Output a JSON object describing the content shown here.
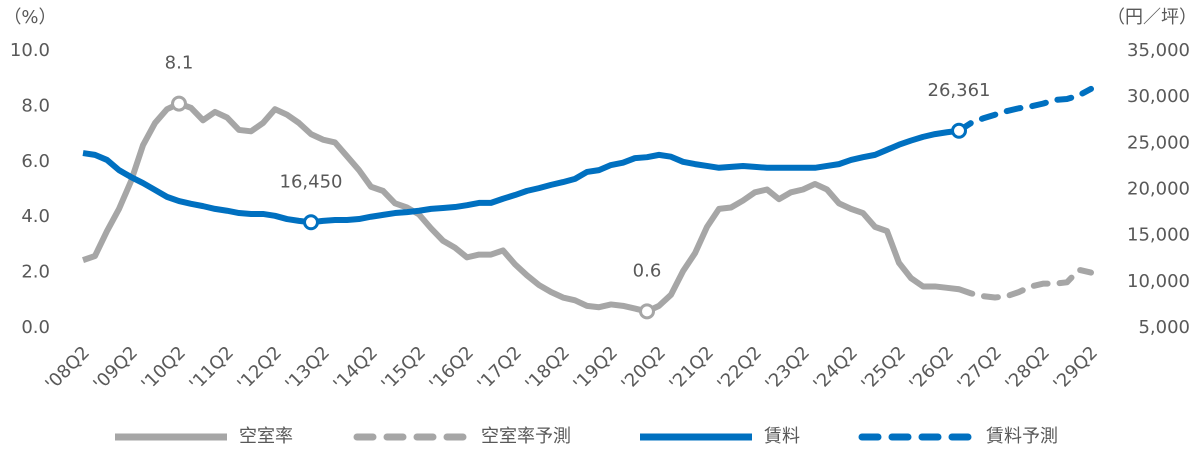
{
  "chart_data": {
    "type": "line",
    "y_label": "（%）",
    "y2_label": "（円／坪）",
    "categories": [
      "'08Q2",
      null,
      null,
      null,
      "'09Q2",
      null,
      null,
      null,
      "'10Q2",
      null,
      null,
      null,
      "'11Q2",
      null,
      null,
      null,
      "'12Q2",
      null,
      null,
      null,
      "'13Q2",
      null,
      null,
      null,
      "'14Q2",
      null,
      null,
      null,
      "'15Q2",
      null,
      null,
      null,
      "'16Q2",
      null,
      null,
      null,
      "'17Q2",
      null,
      null,
      null,
      "'18Q2",
      null,
      null,
      null,
      "'19Q2",
      null,
      null,
      null,
      "'20Q2",
      null,
      null,
      null,
      "'21Q2",
      null,
      null,
      null,
      "'22Q2",
      null,
      null,
      null,
      "'23Q2",
      null,
      null,
      null,
      "'24Q2",
      null,
      null,
      null,
      "'25Q2",
      null,
      null,
      null,
      "'26Q2",
      null,
      null,
      null,
      "'27Q2",
      null,
      null,
      null,
      "'28Q2",
      null,
      null,
      null,
      "'29Q2"
    ],
    "ylim": [
      0,
      10
    ],
    "yticks": [
      {
        "value": 0,
        "label": "0.0"
      },
      {
        "value": 2,
        "label": "2.0"
      },
      {
        "value": 4,
        "label": "4.0"
      },
      {
        "value": 6,
        "label": "6.0"
      },
      {
        "value": 8,
        "label": "8.0"
      },
      {
        "value": 10,
        "label": "10.0"
      }
    ],
    "y2lim": [
      5000,
      35000
    ],
    "y2ticks": [
      {
        "value": 5000,
        "label": "5,000"
      },
      {
        "value": 10000,
        "label": "10,000"
      },
      {
        "value": 15000,
        "label": "15,000"
      },
      {
        "value": 20000,
        "label": "20,000"
      },
      {
        "value": 25000,
        "label": "25,000"
      },
      {
        "value": 30000,
        "label": "30,000"
      },
      {
        "value": 35000,
        "label": "35,000"
      }
    ],
    "grid": false,
    "legend": "bottom",
    "series": [
      {
        "name": "空室率",
        "color": "#a6a6a6",
        "dashed": false,
        "values": [
          2.45,
          2.6,
          3.5,
          4.3,
          5.3,
          6.6,
          7.4,
          7.9,
          8.1,
          7.95,
          7.5,
          7.8,
          7.6,
          7.15,
          7.1,
          7.4,
          7.9,
          7.7,
          7.4,
          7.0,
          6.8,
          6.7,
          6.2,
          5.7,
          5.1,
          4.95,
          4.5,
          4.35,
          4.1,
          3.6,
          3.15,
          2.9,
          2.55,
          2.65,
          2.65,
          2.8,
          2.3,
          1.9,
          1.55,
          1.3,
          1.1,
          1.0,
          0.8,
          0.75,
          0.85,
          0.8,
          0.7,
          0.6,
          0.8,
          1.2,
          2.05,
          2.7,
          3.65,
          4.3,
          4.35,
          4.6,
          4.9,
          5.0,
          4.65,
          4.9,
          5.0,
          5.2,
          5.0,
          4.5,
          4.3,
          4.15,
          3.65,
          3.5,
          2.35,
          1.8,
          1.5,
          1.5,
          1.45,
          1.4,
          null,
          null,
          null,
          null,
          null,
          null,
          null,
          null,
          null,
          null,
          null
        ],
        "value_labels": [
          null,
          null,
          null,
          null,
          null,
          null,
          null,
          null,
          "8.1",
          null,
          null,
          null,
          null,
          null,
          null,
          null,
          null,
          null,
          null,
          null,
          null,
          null,
          null,
          null,
          null,
          null,
          null,
          null,
          null,
          null,
          null,
          null,
          null,
          null,
          null,
          null,
          null,
          null,
          null,
          null,
          null,
          null,
          null,
          null,
          null,
          null,
          null,
          "0.6",
          null,
          null,
          null,
          null,
          null,
          null,
          null,
          null,
          null,
          null,
          null,
          null,
          null,
          null,
          null,
          null,
          null,
          null,
          null,
          null,
          null,
          null,
          null,
          null,
          null,
          null,
          null,
          null,
          null,
          null,
          null,
          null,
          null,
          null,
          null,
          null,
          null
        ]
      },
      {
        "name": "空室率予測",
        "color": "#a6a6a6",
        "dashed": true,
        "values": [
          null,
          null,
          null,
          null,
          null,
          null,
          null,
          null,
          null,
          null,
          null,
          null,
          null,
          null,
          null,
          null,
          null,
          null,
          null,
          null,
          null,
          null,
          null,
          null,
          null,
          null,
          null,
          null,
          null,
          null,
          null,
          null,
          null,
          null,
          null,
          null,
          null,
          null,
          null,
          null,
          null,
          null,
          null,
          null,
          null,
          null,
          null,
          null,
          null,
          null,
          null,
          null,
          null,
          null,
          null,
          null,
          null,
          null,
          null,
          null,
          null,
          null,
          null,
          null,
          null,
          null,
          null,
          null,
          null,
          null,
          null,
          null,
          null,
          1.4,
          1.25,
          1.15,
          1.1,
          1.15,
          1.3,
          1.5,
          1.6,
          1.6,
          1.65,
          2.1,
          2.0
        ]
      },
      {
        "name": "賃料",
        "color": "#0070c0",
        "dashed": false,
        "axis": "y2",
        "values": [
          23950,
          23750,
          23200,
          22100,
          21350,
          20700,
          19950,
          19200,
          18750,
          18450,
          18200,
          17900,
          17700,
          17450,
          17350,
          17350,
          17150,
          16800,
          16600,
          16450,
          16600,
          16700,
          16700,
          16800,
          17050,
          17250,
          17450,
          17550,
          17700,
          17900,
          18000,
          18100,
          18300,
          18550,
          18550,
          19000,
          19400,
          19850,
          20150,
          20500,
          20800,
          21150,
          21900,
          22100,
          22650,
          22900,
          23400,
          23500,
          23750,
          23550,
          23000,
          22750,
          22550,
          22350,
          22450,
          22550,
          22450,
          22350,
          22350,
          22350,
          22350,
          22350,
          22550,
          22750,
          23200,
          23500,
          23750,
          24300,
          24850,
          25300,
          25700,
          26000,
          26200,
          26361,
          null,
          null,
          null,
          null,
          null,
          null,
          null,
          null,
          null,
          null,
          null
        ],
        "value_labels": [
          null,
          null,
          null,
          null,
          null,
          null,
          null,
          null,
          null,
          null,
          null,
          null,
          null,
          null,
          null,
          null,
          null,
          null,
          null,
          "16,450",
          null,
          null,
          null,
          null,
          null,
          null,
          null,
          null,
          null,
          null,
          null,
          null,
          null,
          null,
          null,
          null,
          null,
          null,
          null,
          null,
          null,
          null,
          null,
          null,
          null,
          null,
          null,
          null,
          null,
          null,
          null,
          null,
          null,
          null,
          null,
          null,
          null,
          null,
          null,
          null,
          null,
          null,
          null,
          null,
          null,
          null,
          null,
          null,
          null,
          null,
          null,
          null,
          null,
          "26,361",
          null,
          null,
          null,
          null,
          null,
          null,
          null,
          null,
          null,
          null,
          null
        ]
      },
      {
        "name": "賃料予測",
        "color": "#0070c0",
        "dashed": true,
        "axis": "y2",
        "values": [
          null,
          null,
          null,
          null,
          null,
          null,
          null,
          null,
          null,
          null,
          null,
          null,
          null,
          null,
          null,
          null,
          null,
          null,
          null,
          null,
          null,
          null,
          null,
          null,
          null,
          null,
          null,
          null,
          null,
          null,
          null,
          null,
          null,
          null,
          null,
          null,
          null,
          null,
          null,
          null,
          null,
          null,
          null,
          null,
          null,
          null,
          null,
          null,
          null,
          null,
          null,
          null,
          null,
          null,
          null,
          null,
          null,
          null,
          null,
          null,
          null,
          null,
          null,
          null,
          null,
          null,
          null,
          null,
          null,
          null,
          null,
          null,
          null,
          26361,
          27200,
          27700,
          28100,
          28500,
          28800,
          29000,
          29300,
          29700,
          29800,
          30200,
          30900
        ]
      }
    ]
  }
}
